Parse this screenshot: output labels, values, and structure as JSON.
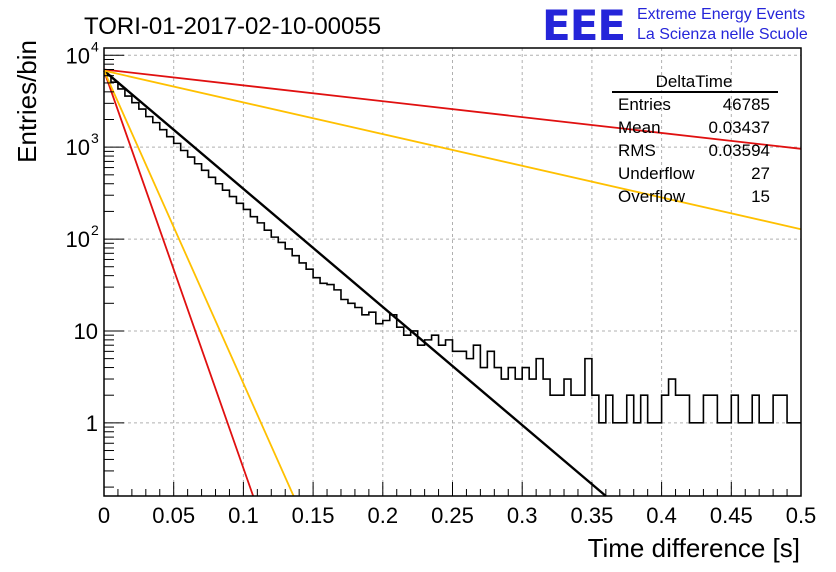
{
  "header": {
    "run_title": "TORI-01-2017-02-10-00055",
    "logo_mark": "EEE",
    "logo_line1": "Extreme Energy Events",
    "logo_line2": "La Scienza nelle Scuole"
  },
  "stats_box": {
    "title": "DeltaTime",
    "rows": [
      {
        "label": "Entries",
        "value": "46785"
      },
      {
        "label": "Mean",
        "value": "0.03437"
      },
      {
        "label": "RMS",
        "value": "0.03594"
      },
      {
        "label": "Underflow",
        "value": "27"
      },
      {
        "label": "Overflow",
        "value": "15"
      }
    ]
  },
  "colors": {
    "histogram": "#000000",
    "fit": "#000000",
    "red_line": "#e01010",
    "orange_line": "#ffc000",
    "grid": "#b0b0b0",
    "logo": "#2525d9"
  },
  "chart_data": {
    "type": "line",
    "title": "TORI-01-2017-02-10-00055",
    "xlabel": "Time difference [s]",
    "ylabel": "Entries/bin",
    "xlim": [
      0,
      0.5
    ],
    "ylim": [
      0.16,
      12000
    ],
    "yscale": "log",
    "grid": true,
    "x_ticks": [
      "0",
      "0.05",
      "0.1",
      "0.15",
      "0.2",
      "0.25",
      "0.3",
      "0.35",
      "0.4",
      "0.45",
      "0.5"
    ],
    "y_ticks": [
      {
        "value": 1,
        "base": "1",
        "exp": ""
      },
      {
        "value": 10,
        "base": "10",
        "exp": ""
      },
      {
        "value": 100,
        "base": "10",
        "exp": "2"
      },
      {
        "value": 1000,
        "base": "10",
        "exp": "3"
      },
      {
        "value": 10000,
        "base": "10",
        "exp": "4"
      }
    ],
    "histogram": {
      "bin_width": 0.005,
      "x_start": 0,
      "counts": [
        6000,
        5100,
        4300,
        3600,
        3050,
        2600,
        2150,
        1850,
        1550,
        1300,
        1100,
        920,
        780,
        660,
        560,
        470,
        400,
        340,
        290,
        245,
        210,
        175,
        150,
        125,
        105,
        92,
        78,
        66,
        55,
        47,
        38,
        33,
        32,
        28,
        22,
        20,
        18,
        15,
        16,
        12,
        13,
        15,
        11,
        9,
        10,
        7,
        8,
        9,
        7,
        8,
        6,
        6,
        5,
        7,
        4,
        6,
        4,
        3,
        4,
        3,
        4,
        3,
        5,
        3,
        2,
        2,
        3,
        2,
        2,
        5,
        2,
        1,
        2,
        1,
        1,
        2,
        1,
        2,
        1,
        1,
        2,
        3,
        2,
        2,
        1,
        1,
        2,
        2,
        1,
        1,
        2,
        1,
        1,
        2,
        1,
        1,
        2,
        2,
        1,
        1
      ]
    },
    "series": [
      {
        "color": "#000000",
        "x": [
          0,
          0.36
        ],
        "y": [
          6800,
          0.16
        ]
      },
      {
        "color": "#e01010",
        "x": [
          0,
          0.5
        ],
        "y": [
          7000,
          960
        ]
      },
      {
        "color": "#ffc000",
        "x": [
          0,
          0.5
        ],
        "y": [
          6800,
          128
        ]
      },
      {
        "color": "#e01010",
        "x": [
          0,
          0.107
        ],
        "y": [
          6800,
          0.16
        ]
      },
      {
        "color": "#ffc000",
        "x": [
          0,
          0.136
        ],
        "y": [
          6800,
          0.16
        ]
      }
    ]
  }
}
